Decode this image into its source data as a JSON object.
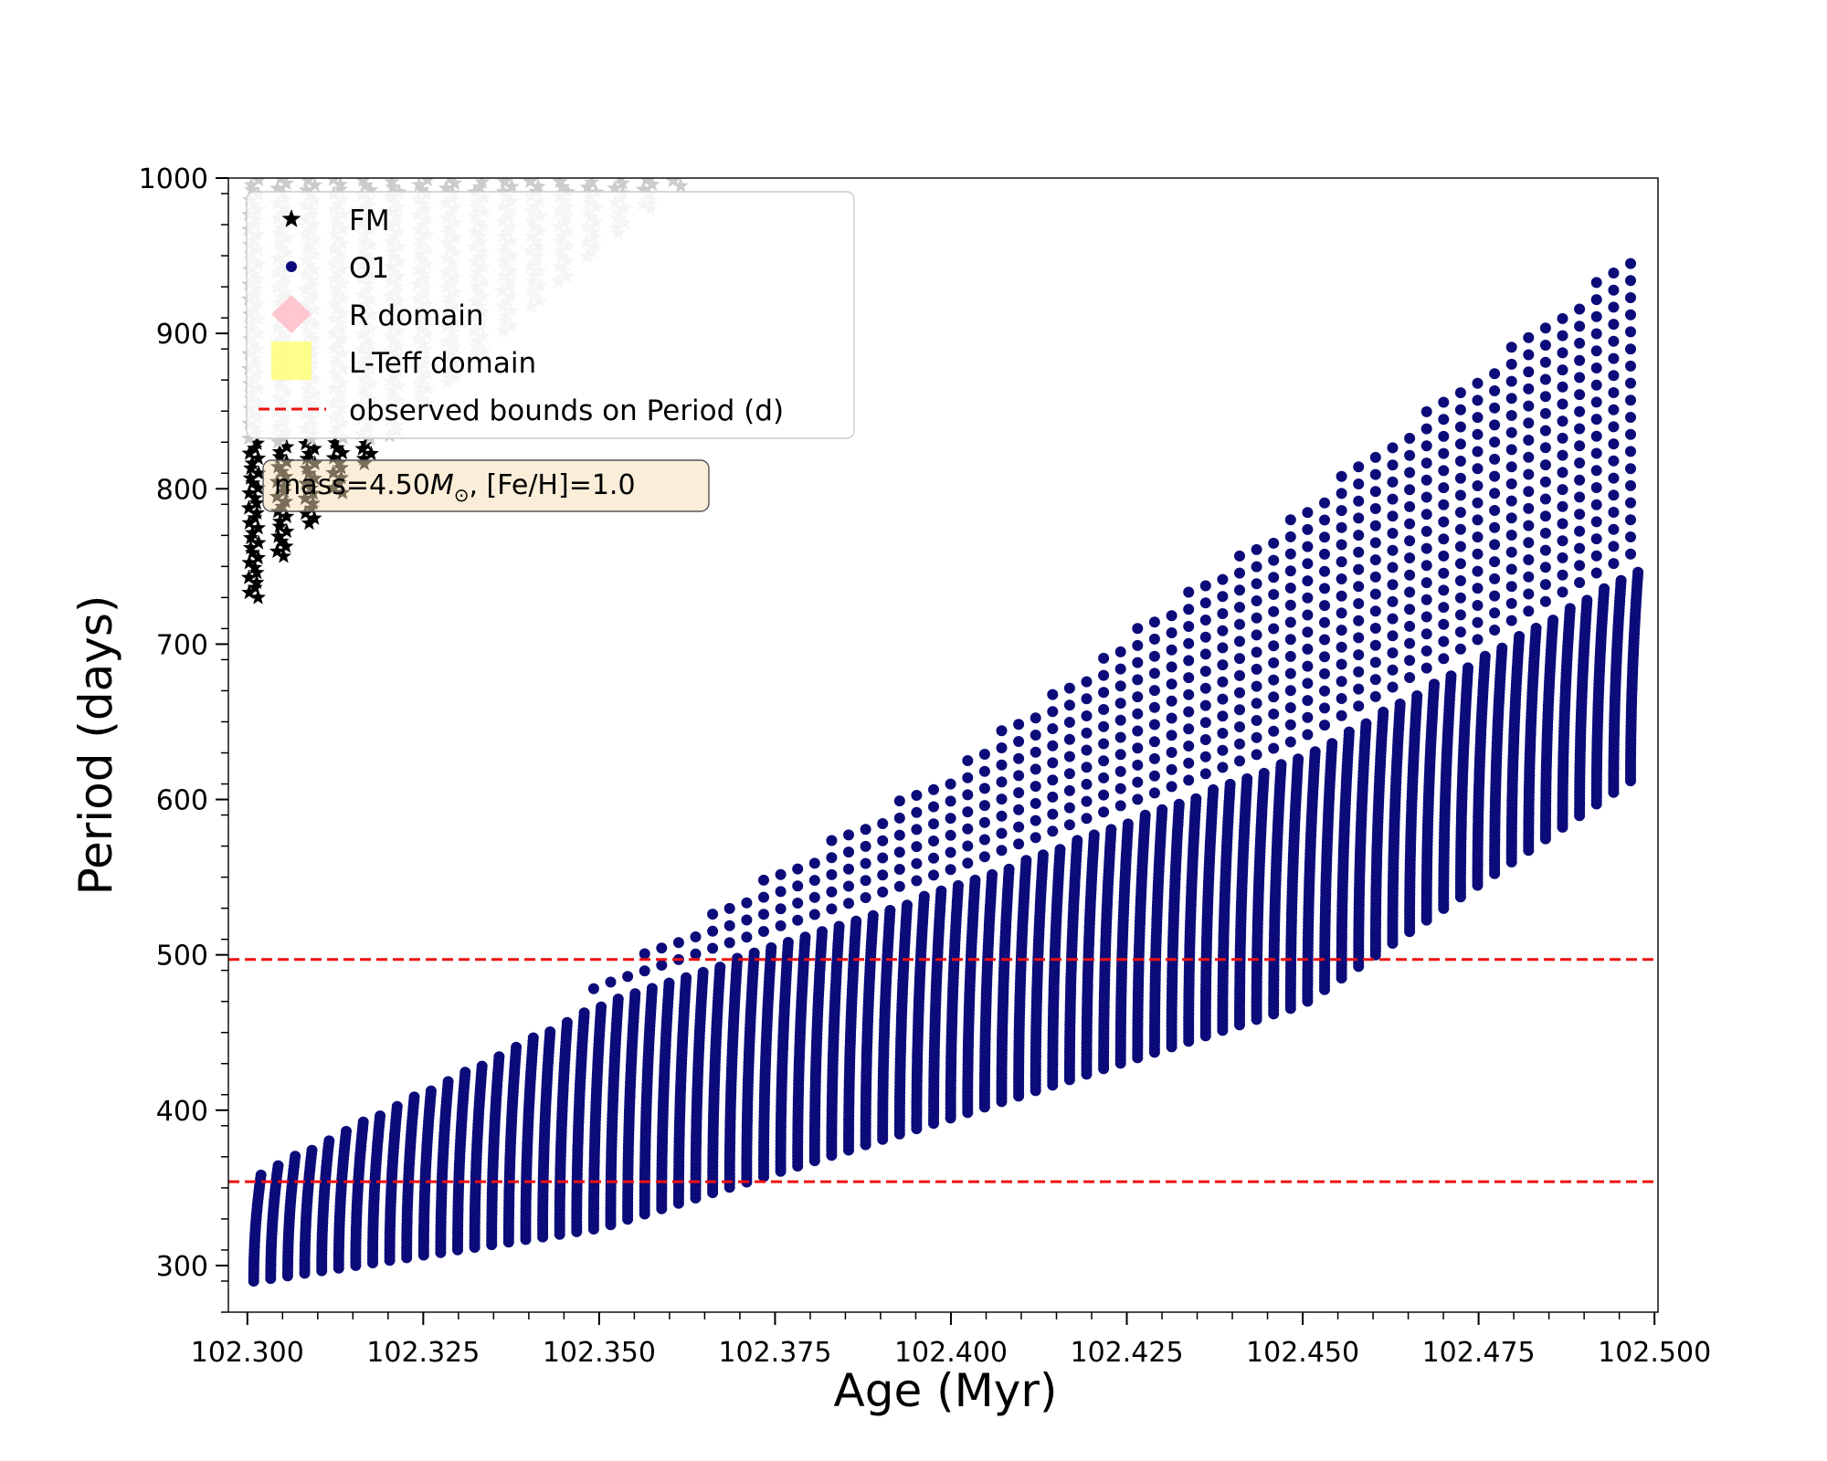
{
  "chart_data": {
    "type": "scatter",
    "xlabel": "Age (Myr)",
    "ylabel": "Period (days)",
    "xlim": [
      102.2973,
      102.5005
    ],
    "ylim": [
      270,
      1000
    ],
    "x_ticks": [
      102.3,
      102.325,
      102.35,
      102.375,
      102.4,
      102.425,
      102.45,
      102.475,
      102.5
    ],
    "x_tick_labels": [
      "102.300",
      "102.325",
      "102.350",
      "102.375",
      "102.400",
      "102.425",
      "102.450",
      "102.475",
      "102.500"
    ],
    "y_ticks": [
      300,
      400,
      500,
      600,
      700,
      800,
      900,
      1000
    ],
    "y_tick_labels": [
      "300",
      "400",
      "500",
      "600",
      "700",
      "800",
      "900",
      "1000"
    ],
    "grid": false,
    "legend_position": "top-left",
    "annotation": {
      "prefix": "mass=4.50",
      "symbol": "M",
      "subscript": "⊙",
      "suffix": ", [Fe/H]=1.0"
    },
    "series": [
      {
        "name": "FM",
        "marker": "star",
        "color": "#000000",
        "muted_color": "#cccccc",
        "age_start": 102.3009,
        "age_step": 0.004,
        "column_count": 16,
        "period_min_start": 730,
        "period_min_end": 995,
        "period_max": 1000,
        "gray_band_lower": 830
      },
      {
        "name": "O1",
        "marker": "circle",
        "color": "#0b0b7a",
        "age_start": 102.3009,
        "age_end": 102.4966,
        "column_count": 82,
        "lower_envelope": [
          [
            102.3009,
            290
          ],
          [
            102.35,
            324
          ],
          [
            102.4,
            395
          ],
          [
            102.45,
            468
          ],
          [
            102.4966,
            612
          ]
        ],
        "dense_upper_envelope": [
          [
            102.3009,
            360
          ],
          [
            102.35,
            470
          ],
          [
            102.4,
            545
          ],
          [
            102.45,
            630
          ],
          [
            102.4966,
            748
          ]
        ],
        "sparse_upper_envelope": [
          [
            102.348,
            480
          ],
          [
            102.4,
            620
          ],
          [
            102.45,
            790
          ],
          [
            102.4966,
            950
          ]
        ]
      },
      {
        "name": "R domain",
        "marker": "diamond",
        "color": "#ffb6c1"
      },
      {
        "name": "L-Teff domain",
        "marker": "square",
        "color": "#ffff66"
      },
      {
        "name": "observed bounds on Period (d)",
        "marker": "dashed-line",
        "color": "#ee1111",
        "values": [
          354,
          497
        ]
      }
    ]
  }
}
